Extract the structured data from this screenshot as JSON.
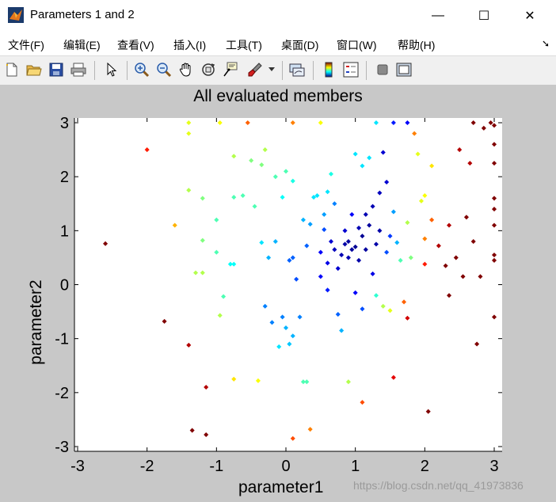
{
  "window": {
    "title": "Parameters 1 and 2",
    "controls": {
      "minimize": "—",
      "maximize": "☐",
      "close": "✕"
    }
  },
  "menu": {
    "items": [
      "文件(F)",
      "编辑(E)",
      "查看(V)",
      "插入(I)",
      "工具(T)",
      "桌面(D)",
      "窗口(W)",
      "帮助(H)"
    ],
    "dock_icon": "dock-arrow-icon"
  },
  "toolbar": {
    "icons": [
      "new-figure-icon",
      "open-file-icon",
      "save-icon",
      "print-icon",
      "select-arrow-icon",
      "zoom-in-icon",
      "zoom-out-icon",
      "pan-hand-icon",
      "rotate-3d-icon",
      "data-cursor-icon",
      "brush-icon",
      "link-plot-icon",
      "colorbar-icon",
      "legend-icon",
      "hide-plot-tools-icon",
      "show-plot-tools-icon"
    ]
  },
  "watermark": "https://blog.csdn.net/qq_41973836",
  "chart_data": {
    "type": "scatter",
    "title": "All evaluated members",
    "xlabel": "parameter1",
    "ylabel": "parameter2",
    "xlim": [
      -3.1,
      3.1
    ],
    "ylim": [
      -3.1,
      3.1
    ],
    "xticks": [
      -3,
      -2,
      -1,
      0,
      1,
      2,
      3
    ],
    "yticks": [
      -3,
      -2,
      -1,
      0,
      1,
      2,
      3
    ],
    "grid": false,
    "legend": "none",
    "marker": "diamond",
    "colormap": "jet",
    "color_scale": "0 = dark blue (center of cluster) to 1 = dark red (outer points)",
    "points": [
      [
        -2.6,
        0.76,
        1.0
      ],
      [
        -2.0,
        2.5,
        0.85
      ],
      [
        -1.75,
        -0.68,
        1.0
      ],
      [
        -1.6,
        1.1,
        0.7
      ],
      [
        -1.4,
        3.0,
        0.6
      ],
      [
        -1.4,
        2.8,
        0.6
      ],
      [
        -1.4,
        1.75,
        0.55
      ],
      [
        -1.4,
        -1.12,
        0.95
      ],
      [
        -1.35,
        -2.7,
        1.0
      ],
      [
        -1.3,
        0.22,
        0.55
      ],
      [
        -1.2,
        0.22,
        0.55
      ],
      [
        -1.2,
        0.82,
        0.5
      ],
      [
        -1.2,
        1.6,
        0.5
      ],
      [
        -1.15,
        -2.78,
        1.0
      ],
      [
        -1.15,
        -1.9,
        0.95
      ],
      [
        -1.0,
        0.6,
        0.45
      ],
      [
        -1.0,
        1.2,
        0.45
      ],
      [
        -0.95,
        3.0,
        0.62
      ],
      [
        -0.95,
        -0.57,
        0.55
      ],
      [
        -0.9,
        -0.22,
        0.45
      ],
      [
        -0.8,
        0.38,
        0.38
      ],
      [
        -0.75,
        0.38,
        0.38
      ],
      [
        -0.75,
        1.62,
        0.45
      ],
      [
        -0.75,
        2.38,
        0.55
      ],
      [
        -0.75,
        -1.75,
        0.65
      ],
      [
        -0.62,
        1.65,
        0.45
      ],
      [
        -0.55,
        3.0,
        0.78
      ],
      [
        -0.5,
        2.3,
        0.5
      ],
      [
        -0.45,
        1.45,
        0.45
      ],
      [
        -0.4,
        -1.78,
        0.62
      ],
      [
        -0.35,
        0.78,
        0.35
      ],
      [
        -0.35,
        2.22,
        0.5
      ],
      [
        -0.3,
        2.5,
        0.55
      ],
      [
        -0.3,
        -0.4,
        0.25
      ],
      [
        -0.25,
        0.5,
        0.3
      ],
      [
        -0.2,
        -0.7,
        0.25
      ],
      [
        -0.15,
        0.8,
        0.3
      ],
      [
        -0.15,
        2.0,
        0.45
      ],
      [
        -0.1,
        -1.15,
        0.35
      ],
      [
        -0.05,
        -0.6,
        0.25
      ],
      [
        -0.05,
        1.62,
        0.38
      ],
      [
        0.0,
        2.1,
        0.45
      ],
      [
        0.0,
        -0.8,
        0.3
      ],
      [
        0.05,
        0.45,
        0.22
      ],
      [
        0.05,
        -1.1,
        0.32
      ],
      [
        0.1,
        3.0,
        0.75
      ],
      [
        0.1,
        1.92,
        0.4
      ],
      [
        0.1,
        0.5,
        0.22
      ],
      [
        0.1,
        -0.95,
        0.3
      ],
      [
        0.1,
        -2.85,
        0.8
      ],
      [
        0.15,
        0.1,
        0.2
      ],
      [
        0.2,
        -0.6,
        0.25
      ],
      [
        0.25,
        -1.8,
        0.45
      ],
      [
        0.25,
        1.2,
        0.3
      ],
      [
        0.3,
        -1.8,
        0.45
      ],
      [
        0.3,
        0.72,
        0.22
      ],
      [
        0.35,
        -2.68,
        0.75
      ],
      [
        0.35,
        1.12,
        0.28
      ],
      [
        0.4,
        1.62,
        0.35
      ],
      [
        0.45,
        1.65,
        0.35
      ],
      [
        0.5,
        3.0,
        0.62
      ],
      [
        0.5,
        0.6,
        0.12
      ],
      [
        0.5,
        0.15,
        0.12
      ],
      [
        0.55,
        1.3,
        0.28
      ],
      [
        0.55,
        1.02,
        0.2
      ],
      [
        0.6,
        1.72,
        0.35
      ],
      [
        0.6,
        0.4,
        0.1
      ],
      [
        0.6,
        -0.1,
        0.15
      ],
      [
        0.65,
        0.8,
        0.08
      ],
      [
        0.65,
        2.05,
        0.4
      ],
      [
        0.7,
        0.65,
        0.06
      ],
      [
        0.7,
        1.5,
        0.25
      ],
      [
        0.75,
        0.3,
        0.08
      ],
      [
        0.75,
        -0.55,
        0.22
      ],
      [
        0.8,
        -0.85,
        0.3
      ],
      [
        0.8,
        0.55,
        0.05
      ],
      [
        0.85,
        0.75,
        0.04
      ],
      [
        0.85,
        1.0,
        0.08
      ],
      [
        0.9,
        0.8,
        0.03
      ],
      [
        0.9,
        0.5,
        0.05
      ],
      [
        0.9,
        -1.8,
        0.55
      ],
      [
        0.95,
        0.65,
        0.03
      ],
      [
        0.95,
        1.3,
        0.12
      ],
      [
        1.0,
        0.7,
        0.02
      ],
      [
        1.0,
        2.42,
        0.35
      ],
      [
        1.0,
        -0.15,
        0.12
      ],
      [
        1.05,
        1.05,
        0.05
      ],
      [
        1.05,
        0.45,
        0.04
      ],
      [
        1.1,
        0.9,
        0.02
      ],
      [
        1.1,
        2.2,
        0.35
      ],
      [
        1.1,
        -0.45,
        0.2
      ],
      [
        1.1,
        -2.18,
        0.8
      ],
      [
        1.15,
        1.3,
        0.05
      ],
      [
        1.15,
        0.65,
        0.03
      ],
      [
        1.2,
        1.1,
        0.03
      ],
      [
        1.2,
        2.35,
        0.35
      ],
      [
        1.25,
        0.2,
        0.1
      ],
      [
        1.25,
        1.45,
        0.05
      ],
      [
        1.3,
        0.75,
        0.04
      ],
      [
        1.3,
        3.0,
        0.35
      ],
      [
        1.3,
        -0.2,
        0.42
      ],
      [
        1.35,
        1.7,
        0.06
      ],
      [
        1.35,
        1.0,
        0.04
      ],
      [
        1.4,
        2.45,
        0.08
      ],
      [
        1.4,
        -0.4,
        0.55
      ],
      [
        1.45,
        1.9,
        0.08
      ],
      [
        1.45,
        0.6,
        0.2
      ],
      [
        1.5,
        -0.48,
        0.6
      ],
      [
        1.5,
        0.9,
        0.18
      ],
      [
        1.55,
        3.0,
        0.15
      ],
      [
        1.55,
        1.35,
        0.28
      ],
      [
        1.55,
        -1.72,
        0.9
      ],
      [
        1.6,
        0.78,
        0.3
      ],
      [
        1.65,
        0.45,
        0.45
      ],
      [
        1.7,
        -0.32,
        0.78
      ],
      [
        1.75,
        3.0,
        0.12
      ],
      [
        1.75,
        1.15,
        0.55
      ],
      [
        1.75,
        -0.62,
        0.92
      ],
      [
        1.8,
        0.5,
        0.5
      ],
      [
        1.85,
        2.8,
        0.75
      ],
      [
        1.9,
        2.42,
        0.6
      ],
      [
        1.95,
        1.55,
        0.6
      ],
      [
        2.0,
        1.65,
        0.62
      ],
      [
        2.0,
        0.85,
        0.75
      ],
      [
        2.0,
        0.38,
        0.85
      ],
      [
        2.05,
        -2.35,
        1.0
      ],
      [
        2.1,
        1.2,
        0.78
      ],
      [
        2.1,
        2.2,
        0.65
      ],
      [
        2.2,
        0.72,
        0.95
      ],
      [
        2.3,
        0.35,
        1.0
      ],
      [
        2.35,
        1.1,
        0.95
      ],
      [
        2.35,
        -0.2,
        1.0
      ],
      [
        2.45,
        0.5,
        1.0
      ],
      [
        2.5,
        2.5,
        0.95
      ],
      [
        2.55,
        0.15,
        1.0
      ],
      [
        2.6,
        1.25,
        1.0
      ],
      [
        2.65,
        2.25,
        0.95
      ],
      [
        2.7,
        3.0,
        1.0
      ],
      [
        2.7,
        0.8,
        1.0
      ],
      [
        2.75,
        -1.1,
        1.0
      ],
      [
        2.8,
        0.15,
        1.0
      ],
      [
        2.85,
        2.9,
        1.0
      ],
      [
        2.95,
        3.0,
        1.0
      ],
      [
        3.0,
        2.95,
        1.0
      ],
      [
        3.0,
        2.6,
        1.0
      ],
      [
        3.0,
        2.25,
        1.0
      ],
      [
        3.0,
        1.6,
        1.0
      ],
      [
        3.0,
        1.4,
        1.0
      ],
      [
        3.0,
        1.1,
        1.0
      ],
      [
        3.0,
        0.55,
        1.0
      ],
      [
        3.0,
        0.45,
        1.0
      ],
      [
        3.0,
        -0.6,
        1.0
      ]
    ]
  }
}
